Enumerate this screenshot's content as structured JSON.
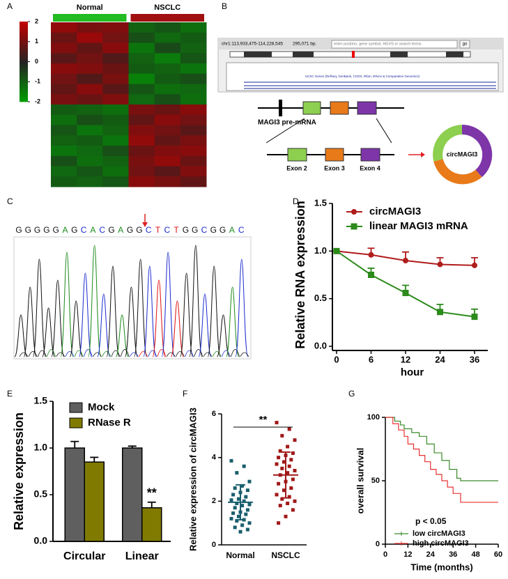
{
  "panel_labels": [
    "A",
    "B",
    "C",
    "D",
    "E",
    "F",
    "G"
  ],
  "browser": {
    "position": "chr1:113,933,475-114,228,545",
    "size": "295,071 bp.",
    "search_placeholder": "enter position, gene symbol, HGVS or search terms",
    "go": "go",
    "track_caption": "UCSC Genes (RefSeq, GenBank, CCDS, Rfam, tRNAs & Comparative Genomics)"
  },
  "schematic": {
    "pre_mrna": "MAGI3 pre-mRNA",
    "exons": [
      "Exon 2",
      "Exon 3",
      "Exon 4"
    ],
    "circ": "circMAGI3"
  },
  "sequencing": {
    "sequence": "GGGGGAGCACGAGGCTCTGGCGGAC"
  },
  "chart_data": [
    {
      "type": "heatmap",
      "categories": [
        "Normal",
        "NSCLC"
      ],
      "group_colors": [
        "#22bb22",
        "#a01010"
      ],
      "clim": [
        -2,
        2
      ],
      "colorbar_ticks": [
        2,
        1,
        0,
        -1,
        -2
      ],
      "low_color": "#00a000",
      "high_color": "#c00000",
      "values": [
        [
          1.4,
          1.1,
          1.2,
          -1.0,
          -0.8,
          -1.2
        ],
        [
          0.9,
          1.5,
          1.0,
          -0.7,
          -1.1,
          -0.9
        ],
        [
          1.2,
          0.8,
          1.3,
          -1.3,
          -0.6,
          -1.0
        ],
        [
          0.7,
          1.0,
          0.6,
          -1.0,
          -1.4,
          -0.8
        ],
        [
          1.3,
          1.2,
          0.9,
          -0.9,
          -1.0,
          -1.3
        ],
        [
          1.0,
          0.6,
          1.1,
          -1.5,
          -0.9,
          -0.7
        ],
        [
          0.8,
          1.3,
          0.7,
          -0.8,
          -1.2,
          -1.1
        ],
        [
          1.1,
          0.9,
          1.2,
          -1.1,
          -0.7,
          -1.2
        ],
        [
          -0.9,
          -1.0,
          -1.2,
          1.1,
          0.9,
          1.3
        ],
        [
          -1.2,
          -0.7,
          -0.9,
          0.8,
          1.3,
          1.0
        ],
        [
          -0.8,
          -1.3,
          -1.0,
          1.2,
          1.0,
          0.7
        ],
        [
          -1.0,
          -0.9,
          -1.3,
          1.4,
          0.8,
          1.1
        ],
        [
          -1.3,
          -1.1,
          -0.7,
          0.9,
          1.2,
          1.3
        ],
        [
          -0.7,
          -1.2,
          -1.0,
          1.1,
          1.4,
          0.9
        ],
        [
          -1.1,
          -0.8,
          -1.2,
          1.0,
          0.7,
          1.2
        ],
        [
          -0.9,
          -1.0,
          -0.8,
          1.3,
          1.1,
          0.8
        ]
      ]
    },
    {
      "type": "line",
      "x_label": "hour",
      "y_label": "Relative RNA expression",
      "categories": [
        "0",
        "6",
        "12",
        "24",
        "36"
      ],
      "ylim": [
        0,
        1.5
      ],
      "yticks": [
        {
          "value": 0,
          "label": "0.0"
        },
        {
          "value": 0.5,
          "label": "0.5"
        },
        {
          "value": 1,
          "label": "1.0"
        },
        {
          "value": 1.5,
          "label": "1.5"
        }
      ],
      "series": [
        {
          "name": "circMAGI3",
          "color": "#b01c1c",
          "marker": "circle",
          "values": [
            1.0,
            0.96,
            0.9,
            0.86,
            0.85
          ],
          "errors": [
            0,
            0.07,
            0.09,
            0.07,
            0.08
          ]
        },
        {
          "name": "linear MAGI3 mRNA",
          "color": "#2b8a1a",
          "marker": "square",
          "values": [
            1.0,
            0.75,
            0.56,
            0.36,
            0.31
          ],
          "errors": [
            0,
            0.07,
            0.08,
            0.08,
            0.08
          ]
        }
      ]
    },
    {
      "type": "bar",
      "y_label": "Relative expression",
      "categories": [
        "Circular",
        "Linear"
      ],
      "ylim": [
        0,
        1.5
      ],
      "yticks": [
        {
          "value": 0,
          "label": "0.0"
        },
        {
          "value": 0.5,
          "label": "0.5"
        },
        {
          "value": 1,
          "label": "1.0"
        },
        {
          "value": 1.5,
          "label": "1.5"
        }
      ],
      "series": [
        {
          "name": "Mock",
          "color": "#5f5f5f",
          "values": [
            1.0,
            1.0
          ],
          "errors": [
            0.07,
            0.02
          ]
        },
        {
          "name": "RNase R",
          "color": "#807a00",
          "values": [
            0.85,
            0.36
          ],
          "errors": [
            0.05,
            0.06
          ]
        }
      ],
      "annotation": "**"
    },
    {
      "type": "scatter",
      "y_label": "Relative expression of circMAGI3",
      "categories": [
        "Normal",
        "NSCLC"
      ],
      "ylim": [
        0,
        6
      ],
      "yticks": [
        0,
        2,
        4,
        6
      ],
      "annotation": "**",
      "series": [
        {
          "color": "#1a5f6e",
          "values": [
            3.85,
            3.6,
            3.3,
            2.9,
            2.7,
            2.6,
            2.5,
            2.4,
            2.3,
            2.2,
            2.1,
            2.05,
            2.0,
            1.9,
            1.85,
            1.8,
            1.7,
            1.6,
            1.5,
            1.45,
            1.4,
            1.3,
            1.2,
            1.15,
            1.1,
            1.0,
            0.9,
            0.8,
            0.7,
            0.6
          ],
          "mean": 1.95,
          "sd": 0.8
        },
        {
          "color": "#a01818",
          "values": [
            5.6,
            5.3,
            5.0,
            4.8,
            4.5,
            4.3,
            4.2,
            4.1,
            4.0,
            3.9,
            3.8,
            3.7,
            3.6,
            3.5,
            3.4,
            3.3,
            3.2,
            3.0,
            2.9,
            2.8,
            2.6,
            2.5,
            2.3,
            2.2,
            2.1,
            2.0,
            1.9,
            1.8,
            1.6,
            1.3,
            1.0
          ],
          "mean": 3.2,
          "sd": 1.05
        }
      ]
    },
    {
      "type": "step",
      "x_label": "Time (months)",
      "y_label": "overall survival",
      "annotation": "p < 0.05",
      "xlim": [
        0,
        60
      ],
      "xticks": [
        0,
        12,
        24,
        36,
        48,
        60
      ],
      "ylim": [
        0,
        100
      ],
      "yticks": [
        0,
        50,
        100
      ],
      "series": [
        {
          "name": "low circMAGI3",
          "color": "#3a8a2a",
          "x": [
            0,
            5,
            8,
            10,
            14,
            18,
            22,
            26,
            30,
            34,
            38,
            40,
            60
          ],
          "values": [
            100,
            97,
            94,
            91,
            88,
            85,
            79,
            72,
            66,
            59,
            52,
            50,
            50
          ]
        },
        {
          "name": "high circMAGI3",
          "color": "#e83030",
          "x": [
            0,
            4,
            7,
            10,
            12,
            15,
            18,
            21,
            24,
            27,
            30,
            33,
            36,
            40,
            60
          ],
          "values": [
            100,
            95,
            90,
            85,
            79,
            75,
            70,
            65,
            59,
            55,
            50,
            45,
            40,
            33,
            33
          ]
        }
      ]
    }
  ]
}
